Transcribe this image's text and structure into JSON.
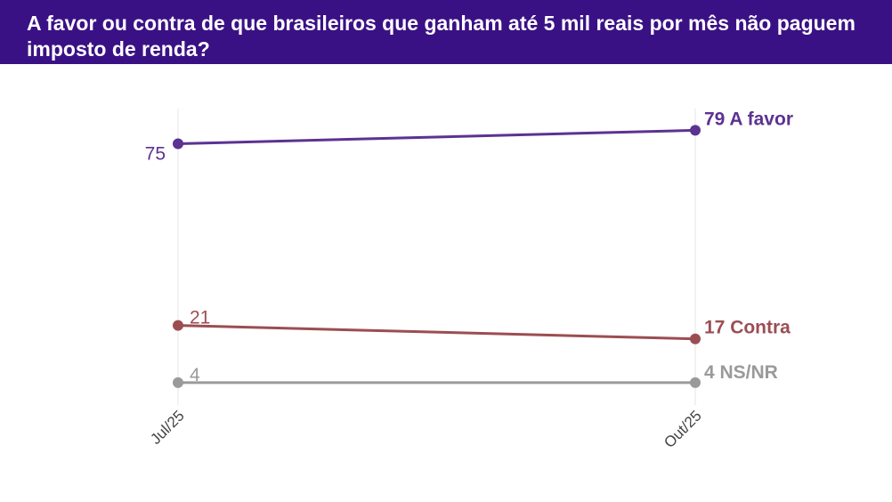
{
  "header": {
    "title": "A favor ou contra de que brasileiros que ganham até 5 mil reais por mês não paguem imposto de renda?"
  },
  "chart_data": {
    "type": "line",
    "title": "A favor ou contra de que brasileiros que ganham até 5 mil reais por mês não paguem imposto de renda?",
    "categories": [
      "Jul/25",
      "Out/25"
    ],
    "ylim": [
      0,
      85
    ],
    "grid": "vertical",
    "series": [
      {
        "name": "A favor",
        "values": [
          75,
          79
        ],
        "color": "#5c3292",
        "start_label": "75",
        "end_label": "79 A favor"
      },
      {
        "name": "Contra",
        "values": [
          21,
          17
        ],
        "color": "#9b4e52",
        "start_label": "21",
        "end_label": "17 Contra"
      },
      {
        "name": "NS/NR",
        "values": [
          4,
          4
        ],
        "color": "#9a9a9a",
        "start_label": "4",
        "end_label": "4 NS/NR"
      }
    ]
  },
  "colors": {
    "header_bg": "#3a1185",
    "header_text": "#ffffff",
    "grid": "#e6e6e6"
  }
}
